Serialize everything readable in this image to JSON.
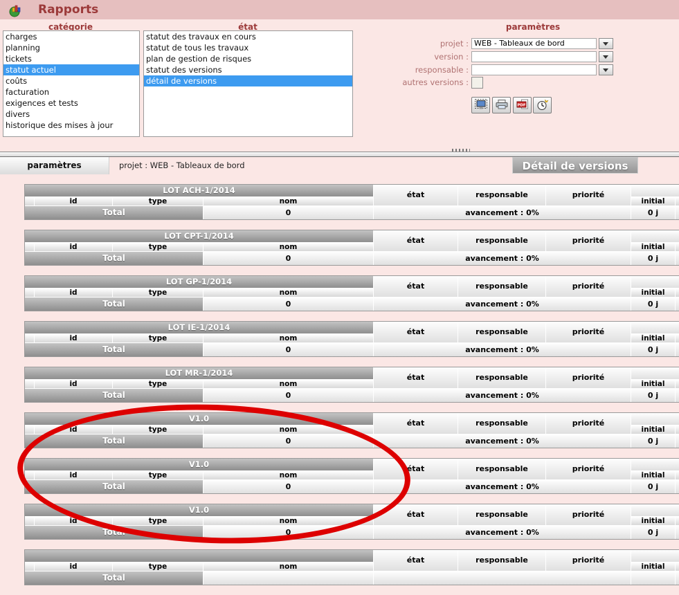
{
  "window": {
    "title": "Rapports"
  },
  "top": {
    "categorie": {
      "header": "catégorie",
      "items": [
        "charges",
        "planning",
        "tickets",
        "statut actuel",
        "coûts",
        "facturation",
        "exigences et tests",
        "divers",
        "historique des mises à jour"
      ],
      "selected_index": 3
    },
    "etat": {
      "header": "état",
      "items": [
        "statut des travaux en cours",
        "statut de tous les travaux",
        "plan de gestion de risques",
        "statut des versions",
        "détail de versions"
      ],
      "selected_index": 4
    },
    "parametres": {
      "header": "paramètres",
      "projet": {
        "label": "projet :",
        "value": "WEB - Tableaux de bord"
      },
      "version": {
        "label": "version :",
        "value": ""
      },
      "responsable": {
        "label": "responsable :",
        "value": ""
      },
      "autres_versions": {
        "label": "autres versions :",
        "checked": false
      },
      "buttons": [
        "screen-preview",
        "print",
        "pdf-export",
        "history"
      ]
    }
  },
  "toolbar": {
    "tab_label": "paramètres",
    "context_text": "projet : WEB - Tableaux de bord",
    "report_title": "Détail de versions"
  },
  "report": {
    "headers": {
      "id": "id",
      "type": "type",
      "nom": "nom",
      "etat": "état",
      "responsable": "responsable",
      "priorite": "priorité",
      "initial": "initial"
    },
    "total_label": "Total",
    "blocks": [
      {
        "title": "LOT ACH-1/2014",
        "nom_total": "0",
        "avancement": "avancement : 0%",
        "initial_total": "0 j"
      },
      {
        "title": "LOT CPT-1/2014",
        "nom_total": "0",
        "avancement": "avancement : 0%",
        "initial_total": "0 j"
      },
      {
        "title": "LOT GP-1/2014",
        "nom_total": "0",
        "avancement": "avancement : 0%",
        "initial_total": "0 j"
      },
      {
        "title": "LOT IE-1/2014",
        "nom_total": "0",
        "avancement": "avancement : 0%",
        "initial_total": "0 j"
      },
      {
        "title": "LOT MR-1/2014",
        "nom_total": "0",
        "avancement": "avancement : 0%",
        "initial_total": "0 j"
      },
      {
        "title": "V1.0",
        "nom_total": "0",
        "avancement": "avancement : 0%",
        "initial_total": "0 j"
      },
      {
        "title": "V1.0",
        "nom_total": "0",
        "avancement": "avancement : 0%",
        "initial_total": "0 j"
      },
      {
        "title": "V1.0",
        "nom_total": "0",
        "avancement": "avancement : 0%",
        "initial_total": "0 j"
      },
      {
        "title": "",
        "nom_total": "",
        "avancement": "",
        "initial_total": "",
        "partial": true
      }
    ]
  },
  "annotation": {
    "type": "ellipse",
    "color": "#dd0000"
  },
  "colors": {
    "selection": "#3d9bf0",
    "maroon": "#9c3a3a",
    "page_bg": "#fbe7e5",
    "titlebar_bg": "#e6bfbf",
    "annotation": "#dd0000"
  }
}
